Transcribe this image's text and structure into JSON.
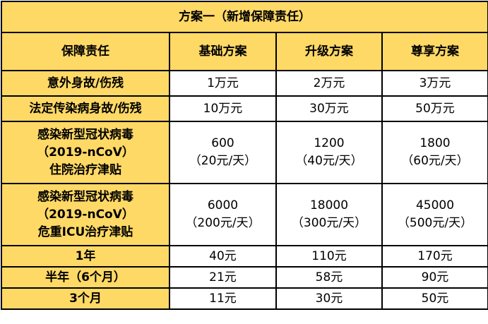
{
  "table": {
    "title": "方案一（新增保障责任）",
    "columns": [
      "保障责任",
      "基础方案",
      "升级方案",
      "尊享方案"
    ],
    "rows": [
      {
        "label": [
          "意外身故/伤残"
        ],
        "values": [
          [
            "1万元"
          ],
          [
            "2万元"
          ],
          [
            "3万元"
          ]
        ]
      },
      {
        "label": [
          "法定传染病身故/伤残"
        ],
        "values": [
          [
            "10万元"
          ],
          [
            "30万元"
          ],
          [
            "50万元"
          ]
        ]
      },
      {
        "label": [
          "感染新型冠状病毒",
          "（2019-nCoV）",
          "住院治疗津贴"
        ],
        "values": [
          [
            "600",
            "（20元/天）"
          ],
          [
            "1200",
            "（40元/天）"
          ],
          [
            "1800",
            "（60元/天）"
          ]
        ]
      },
      {
        "label": [
          "感染新型冠状病毒",
          "（2019-nCoV）",
          "危重ICU治疗津贴"
        ],
        "values": [
          [
            "6000",
            "（200元/天）"
          ],
          [
            "18000",
            "（300元/天）"
          ],
          [
            "45000",
            "（500元/天）"
          ]
        ]
      },
      {
        "label": [
          "1年"
        ],
        "values": [
          [
            "40元"
          ],
          [
            "110元"
          ],
          [
            "170元"
          ]
        ]
      },
      {
        "label": [
          "半年（6个月）"
        ],
        "values": [
          [
            "21元"
          ],
          [
            "58元"
          ],
          [
            "90元"
          ]
        ]
      },
      {
        "label": [
          "3个月"
        ],
        "values": [
          [
            "11元"
          ],
          [
            "30元"
          ],
          [
            "50元"
          ]
        ]
      }
    ]
  }
}
